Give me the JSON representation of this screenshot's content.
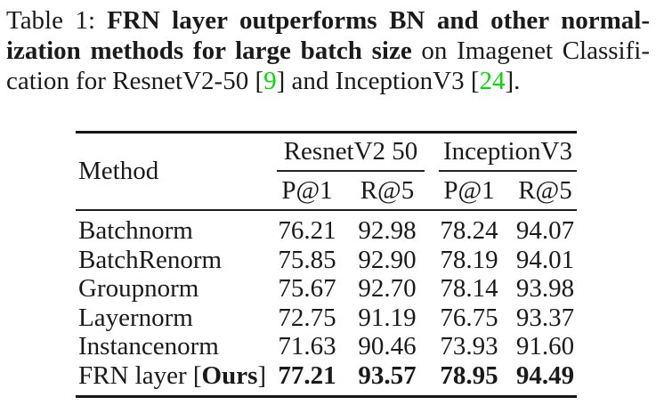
{
  "colors": {
    "citation_green": "#00dc00",
    "text": "#1a1a1a",
    "rule": "#161616"
  },
  "caption": {
    "label": "Table 1:",
    "line1_bold": "FRN layer outperforms BN and other normal-",
    "line2_bold": "ization methods for large batch size",
    "line2_regular": " on Imagenet Classifi-",
    "line3_pre": "cation for ResnetV2-50 [",
    "citation1": "9",
    "line3_mid": "] and InceptionV3 [",
    "citation2": "24",
    "line3_post": "]."
  },
  "table": {
    "method_header": "Method",
    "groups": [
      {
        "label": "ResnetV2 50",
        "columns": [
          "P@1",
          "R@5"
        ]
      },
      {
        "label": "InceptionV3",
        "columns": [
          "P@1",
          "R@5"
        ]
      }
    ],
    "rows": [
      {
        "method": "Batchnorm",
        "values": [
          "76.21",
          "92.98",
          "78.24",
          "94.07"
        ]
      },
      {
        "method": "BatchRenorm",
        "values": [
          "75.85",
          "92.90",
          "78.19",
          "94.01"
        ]
      },
      {
        "method": "Groupnorm",
        "values": [
          "75.67",
          "92.70",
          "78.14",
          "93.98"
        ]
      },
      {
        "method": "Layernorm",
        "values": [
          "72.75",
          "91.19",
          "76.75",
          "93.37"
        ]
      },
      {
        "method": "Instancenorm",
        "values": [
          "71.63",
          "90.46",
          "73.93",
          "91.60"
        ]
      },
      {
        "method_pre": "FRN layer [",
        "method_bold": "Ours",
        "method_post": "]",
        "values": [
          "77.21",
          "93.57",
          "78.95",
          "94.49"
        ]
      }
    ]
  }
}
